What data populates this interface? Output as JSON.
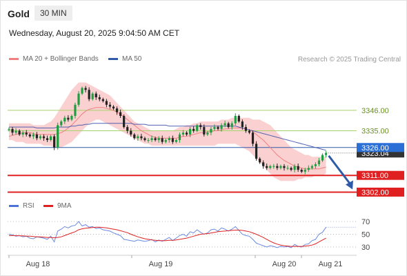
{
  "header": {
    "title": "Gold",
    "timeframe": "30 MIN",
    "datetime": "Wednesday, August 20, 2025 9:04:50 AM CET",
    "credit": "Research © 2025 Trading Central"
  },
  "legend": {
    "main": [
      {
        "label": "MA 20 + Bollinger Bands",
        "color": "#f08080"
      },
      {
        "label": "MA 50",
        "color": "#2e5aa8"
      }
    ],
    "rsi": [
      {
        "label": "RSI",
        "color": "#4a72d8"
      },
      {
        "label": "9MA",
        "color": "#e02020"
      }
    ]
  },
  "colors": {
    "up": "#1e9e40",
    "down": "#222222",
    "band": "#fbd0d0",
    "ma20": "#f08080",
    "ma50": "#5060b0",
    "support": "#e02020",
    "pivot": "#2e5aa8",
    "resistance": "#a6d46a",
    "arrow": "#2e5aa8"
  },
  "chart_data": [
    {
      "type": "candlestick",
      "y_range": [
        3294,
        3366
      ],
      "x_labels": [
        "Aug 18",
        "Aug 19",
        "Aug 20",
        "Aug 21"
      ],
      "levels": [
        {
          "value": 3346.0,
          "label": "3346.00",
          "kind": "resistance"
        },
        {
          "value": 3335.0,
          "label": "3335.00",
          "kind": "resistance"
        },
        {
          "value": 3326.0,
          "label": "3326.00",
          "kind": "pivot"
        },
        {
          "value": 3311.0,
          "label": "3311.00",
          "kind": "support"
        },
        {
          "value": 3302.0,
          "label": "3302.00",
          "kind": "support"
        }
      ],
      "last_price": {
        "value": 3323.04,
        "label": "3323.04"
      },
      "close": [
        3336,
        3334,
        3335,
        3333,
        3334,
        3333,
        3332,
        3333,
        3331,
        3332,
        3331,
        3330,
        3332,
        3326,
        3338,
        3340,
        3342,
        3341,
        3343,
        3349,
        3355,
        3358,
        3357,
        3352,
        3355,
        3353,
        3352,
        3351,
        3349,
        3348,
        3347,
        3345,
        3343,
        3337,
        3335,
        3333,
        3331,
        3332,
        3331,
        3330,
        3330,
        3331,
        3330,
        3331,
        3329,
        3330,
        3331,
        3329,
        3330,
        3333,
        3334,
        3333,
        3336,
        3335,
        3338,
        3337,
        3333,
        3334,
        3336,
        3337,
        3336,
        3338,
        3339,
        3337,
        3339,
        3343,
        3340,
        3337,
        3335,
        3334,
        3328,
        3320,
        3318,
        3316,
        3315,
        3316,
        3316,
        3315,
        3316,
        3315,
        3315,
        3314,
        3316,
        3314,
        3313,
        3314,
        3315,
        3316,
        3317,
        3319,
        3322,
        3323.04
      ],
      "ma20": [
        3332,
        3332.5,
        3333,
        3333.5,
        3334,
        3334,
        3334,
        3333.5,
        3333,
        3333,
        3333,
        3333,
        3333,
        3333,
        3333.5,
        3334,
        3335,
        3336.5,
        3338,
        3340,
        3342,
        3344,
        3345.5,
        3346.5,
        3347,
        3347.5,
        3347.5,
        3347.5,
        3347,
        3346.5,
        3346,
        3345,
        3344,
        3342.5,
        3341,
        3339.5,
        3338,
        3336.5,
        3335,
        3334,
        3333,
        3332,
        3331.5,
        3331,
        3331,
        3331,
        3331,
        3331,
        3331,
        3331.5,
        3332,
        3332,
        3332.5,
        3333,
        3333.5,
        3334,
        3334,
        3334.5,
        3334.5,
        3335,
        3335,
        3335.5,
        3336,
        3336,
        3336.5,
        3336.5,
        3336.5,
        3336.5,
        3336,
        3335.5,
        3334.5,
        3333,
        3331.5,
        3330,
        3328,
        3326,
        3324,
        3322,
        3320.5,
        3319,
        3318,
        3317,
        3316,
        3315.5,
        3315,
        3314.5,
        3314.5,
        3314.5,
        3314.5,
        3314.5,
        3315,
        3315.5
      ],
      "ma50": [
        3337,
        3337,
        3337,
        3337,
        3337,
        3337,
        3337,
        3337,
        3336.5,
        3336.5,
        3336.5,
        3336.5,
        3336.5,
        3336.5,
        3337,
        3337,
        3337,
        3337,
        3337.5,
        3337.5,
        3338,
        3338,
        3338.5,
        3338.5,
        3339,
        3339,
        3339,
        3339,
        3339,
        3339,
        3339,
        3339,
        3339,
        3339,
        3339,
        3339,
        3338.5,
        3338.5,
        3338.5,
        3338.5,
        3338,
        3338,
        3338,
        3338,
        3338,
        3338,
        3337.5,
        3337.5,
        3337.5,
        3337.5,
        3337.5,
        3337.5,
        3337.5,
        3337.5,
        3337.5,
        3337.5,
        3337.5,
        3337.5,
        3337.5,
        3337.5,
        3337.5,
        3337.5,
        3337.5,
        3337.5,
        3337.5,
        3337.5,
        3337,
        3336.5,
        3336,
        3335.5,
        3335,
        3334.5,
        3334,
        3333.5,
        3333,
        3332.5,
        3332,
        3331.5,
        3331,
        3330.5,
        3330,
        3329.5,
        3329,
        3328.5,
        3328,
        3327.5,
        3327,
        3326.5,
        3326,
        3325.5,
        3325,
        3324.5
      ],
      "band_upper": [
        3339,
        3339,
        3339,
        3339,
        3339,
        3339,
        3339,
        3338,
        3338,
        3338,
        3338,
        3339,
        3340,
        3342,
        3345,
        3348,
        3351,
        3354,
        3357,
        3359,
        3361,
        3361,
        3361,
        3360,
        3359,
        3358,
        3357,
        3356,
        3355,
        3354,
        3352,
        3350,
        3348,
        3346,
        3344,
        3342,
        3340,
        3339,
        3338,
        3337,
        3336,
        3335,
        3335,
        3335,
        3335,
        3335,
        3335,
        3335,
        3336,
        3337,
        3337,
        3338,
        3338,
        3339,
        3339,
        3340,
        3340,
        3340,
        3340,
        3340,
        3340,
        3341,
        3341,
        3341,
        3342,
        3342,
        3342,
        3342,
        3342,
        3342,
        3341,
        3341,
        3341,
        3340,
        3339,
        3338,
        3336,
        3334,
        3332,
        3330,
        3328,
        3326,
        3325,
        3324,
        3323,
        3322,
        3322,
        3321,
        3321,
        3321,
        3321,
        3321
      ],
      "band_lower": [
        3330,
        3330,
        3329,
        3329,
        3329,
        3328,
        3328,
        3328,
        3328,
        3328,
        3327,
        3327,
        3327,
        3326,
        3326,
        3326,
        3327,
        3328,
        3329,
        3331,
        3333,
        3335,
        3337,
        3339,
        3340,
        3341,
        3341,
        3340,
        3339,
        3338,
        3337,
        3336,
        3335,
        3334,
        3333,
        3332,
        3331,
        3330,
        3329,
        3328,
        3328,
        3327,
        3327,
        3327,
        3327,
        3327,
        3327,
        3327,
        3327,
        3327,
        3327,
        3327,
        3327,
        3327,
        3327,
        3327,
        3327,
        3327,
        3327,
        3327,
        3328,
        3328,
        3328,
        3328,
        3328,
        3328,
        3327,
        3326,
        3325,
        3324,
        3322,
        3320,
        3318,
        3316,
        3314,
        3312,
        3310,
        3309,
        3308,
        3308,
        3308,
        3308,
        3308,
        3309,
        3309,
        3310,
        3310,
        3310,
        3311,
        3311,
        3311,
        3312
      ],
      "forecast": [
        {
          "value": 3323.04
        },
        {
          "value": 3302.0
        }
      ]
    },
    {
      "type": "line",
      "title": "RSI",
      "y_range": [
        20,
        78
      ],
      "y_ticks": [
        70,
        50,
        30
      ],
      "series": [
        {
          "name": "RSI",
          "values": [
            50,
            49,
            47,
            48,
            46,
            47,
            44,
            43,
            46,
            45,
            44,
            42,
            47,
            38,
            55,
            58,
            62,
            60,
            63,
            64,
            70,
            63,
            65,
            61,
            62,
            59,
            60,
            57,
            56,
            55,
            52,
            50,
            48,
            42,
            41,
            40,
            39,
            41,
            40,
            39,
            40,
            42,
            38,
            41,
            39,
            42,
            45,
            40,
            44,
            48,
            50,
            47,
            54,
            52,
            57,
            53,
            50,
            52,
            57,
            58,
            55,
            60,
            58,
            55,
            58,
            62,
            56,
            50,
            48,
            47,
            42,
            36,
            34,
            32,
            30,
            32,
            31,
            29,
            31,
            30,
            31,
            29,
            34,
            31,
            30,
            34,
            35,
            40,
            42,
            50,
            53,
            61
          ]
        },
        {
          "name": "9MA",
          "values": [
            48,
            48,
            48,
            47.5,
            47.5,
            47,
            47,
            46.5,
            46,
            46,
            45.5,
            45,
            45,
            44.5,
            45,
            46,
            48,
            50,
            52,
            54,
            57,
            58.5,
            59.5,
            60,
            60.5,
            61,
            61,
            60.5,
            60,
            59,
            58,
            57,
            55.5,
            54,
            52.5,
            50,
            48,
            46,
            44.5,
            43,
            42,
            41,
            40.5,
            40,
            40,
            40,
            40.5,
            40.5,
            41,
            42,
            43,
            44,
            45.5,
            47,
            48.5,
            50,
            50.5,
            51,
            52,
            53,
            54,
            54.5,
            55,
            55.5,
            56,
            56.5,
            56.5,
            56,
            55,
            54,
            52,
            50,
            47.5,
            45,
            42,
            39,
            36.5,
            34.5,
            33,
            32,
            31.5,
            31,
            31,
            31,
            31,
            31.5,
            32,
            33,
            35,
            38,
            41,
            44
          ]
        }
      ]
    }
  ]
}
